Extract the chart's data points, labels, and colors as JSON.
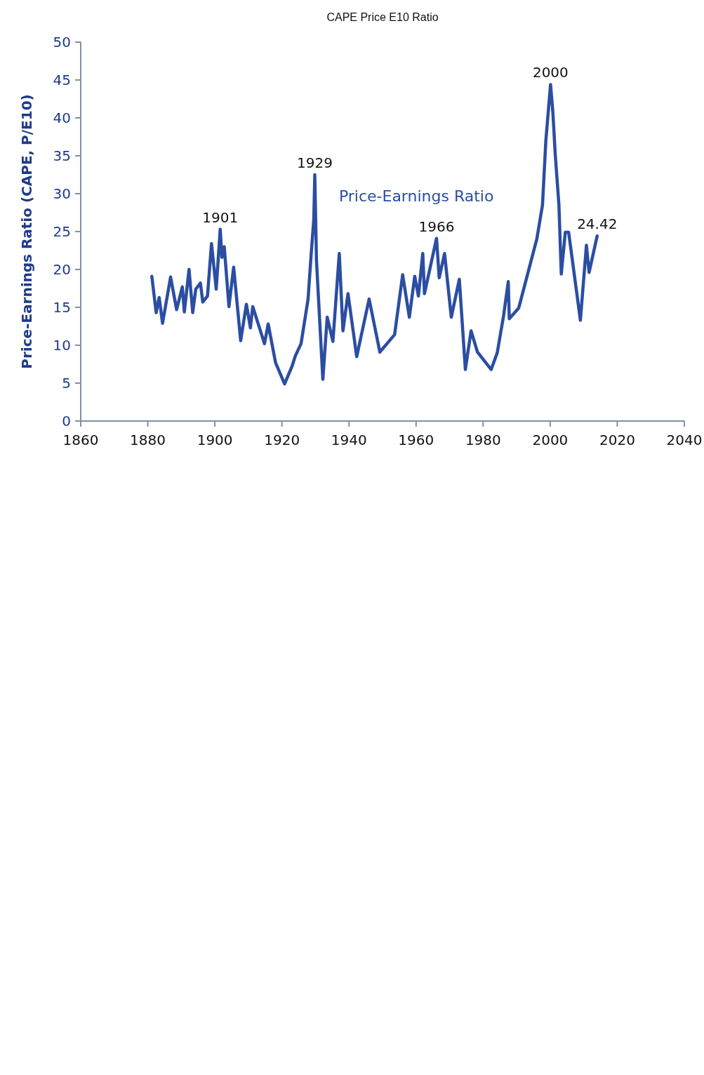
{
  "chart_data": {
    "type": "line",
    "title": "CAPE Price E10 Ratio",
    "ylabel": "Price-Earnings Ratio (CAPE, P/E10)",
    "x": [
      1881.2,
      1882.5,
      1883.4,
      1884.4,
      1886.8,
      1888.6,
      1890.3,
      1890.9,
      1892.3,
      1893.4,
      1894.3,
      1895.7,
      1896.4,
      1897.8,
      1899.0,
      1900.4,
      1901.6,
      1902.1,
      1902.8,
      1904.2,
      1905.6,
      1907.7,
      1909.4,
      1910.6,
      1911.3,
      1914.8,
      1915.9,
      1918.1,
      1920.8,
      1923.0,
      1924.0,
      1925.7,
      1927.8,
      1928.7,
      1929.5,
      1929.8,
      1930.3,
      1932.2,
      1933.5,
      1935.2,
      1937.1,
      1938.2,
      1939.7,
      1942.3,
      1946.0,
      1949.2,
      1953.6,
      1956.0,
      1958.0,
      1959.6,
      1960.7,
      1962.0,
      1962.5,
      1966.1,
      1966.9,
      1968.5,
      1970.5,
      1972.9,
      1974.7,
      1976.4,
      1978.3,
      1982.4,
      1984.2,
      1986.1,
      1987.5,
      1987.8,
      1990.6,
      1994.1,
      1996.0,
      1997.7,
      1998.7,
      2000.1,
      2000.8,
      2001.5,
      2002.6,
      2003.3,
      2004.5,
      2005.5,
      2009.0,
      2010.8,
      2011.1,
      2011.6,
      2014.0
    ],
    "series": [
      {
        "name": "Price-Earnings Ratio",
        "color": "#2b4ea2",
        "values": [
          19.1,
          14.3,
          16.3,
          12.9,
          19.0,
          14.7,
          17.7,
          14.4,
          20.0,
          14.3,
          17.4,
          18.2,
          15.7,
          16.5,
          23.4,
          17.4,
          25.3,
          21.6,
          23.0,
          15.1,
          20.3,
          10.6,
          15.4,
          12.3,
          15.1,
          10.2,
          12.8,
          7.7,
          4.9,
          7.2,
          8.6,
          10.2,
          16.1,
          21.9,
          26.6,
          32.5,
          21.2,
          5.5,
          13.7,
          10.5,
          22.1,
          11.9,
          16.8,
          8.5,
          16.1,
          9.1,
          11.4,
          19.3,
          13.7,
          19.1,
          16.5,
          22.1,
          16.8,
          24.1,
          18.9,
          22.1,
          13.7,
          18.7,
          6.8,
          11.9,
          9.1,
          6.8,
          9.0,
          13.9,
          18.4,
          13.5,
          14.9,
          20.8,
          24.0,
          28.5,
          37.0,
          44.4,
          40.7,
          35.2,
          28.5,
          19.4,
          24.9,
          24.9,
          13.3,
          23.2,
          21.8,
          19.6,
          24.42
        ]
      }
    ],
    "xlim": [
      1860,
      2040
    ],
    "xticks": [
      1860,
      1880,
      1900,
      1920,
      1940,
      1960,
      1980,
      2000,
      2020,
      2040
    ],
    "ylim": [
      0,
      50
    ],
    "yticks": [
      0,
      5,
      10,
      15,
      20,
      25,
      30,
      35,
      40,
      45,
      50
    ],
    "annotations": [
      {
        "text": "1901",
        "x": 1901.6,
        "y": 25.3
      },
      {
        "text": "1929",
        "x": 1929.8,
        "y": 32.5
      },
      {
        "text": "1966",
        "x": 1966.1,
        "y": 24.1
      },
      {
        "text": "2000",
        "x": 2000.1,
        "y": 44.4
      },
      {
        "text": "24.42",
        "x": 2014.0,
        "y": 24.42
      }
    ],
    "grid": false
  }
}
